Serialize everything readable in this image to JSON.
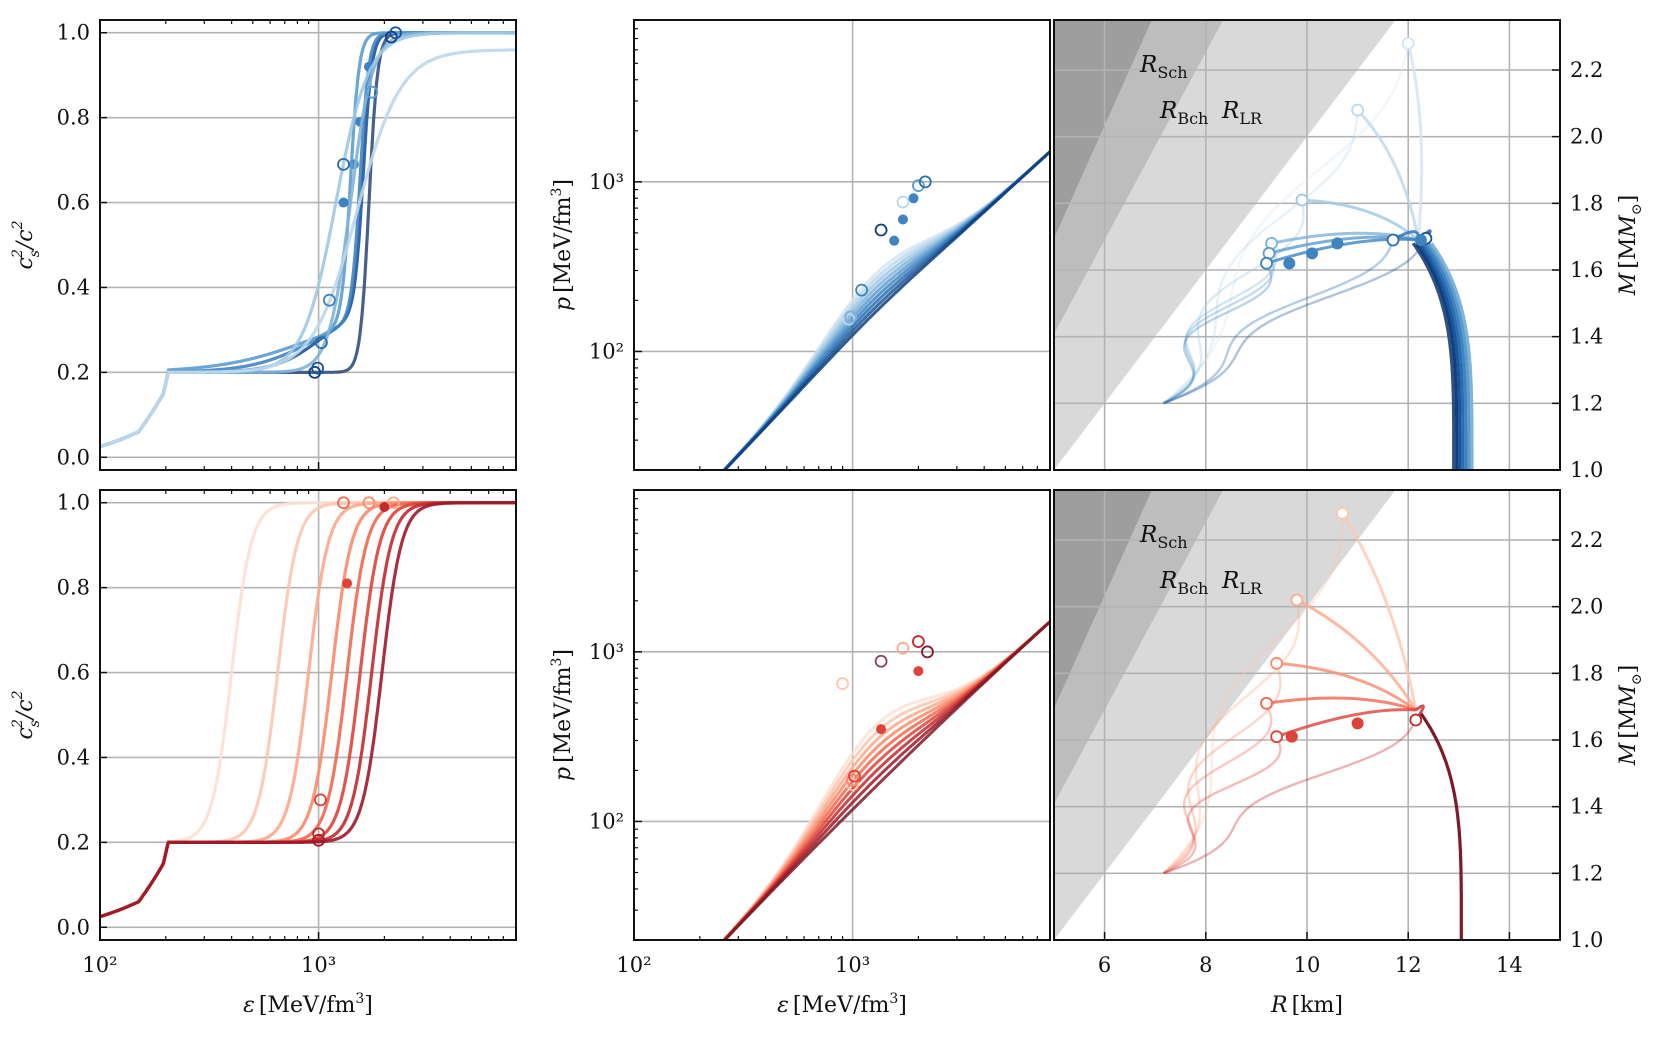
{
  "chart_data": [
    {
      "id": "top-cs2",
      "type": "line",
      "xscale": "log",
      "xlim": [
        100,
        8000
      ],
      "ylim": [
        -0.03,
        1.03
      ],
      "ylabel": "c_s^2/c^2",
      "yticks": [
        "0.0",
        "0.2",
        "0.4",
        "0.6",
        "0.8",
        "1.0"
      ],
      "grid": true,
      "palette": "blues",
      "series": [
        {
          "kind": "jump",
          "x0": 1000,
          "x1": 1700,
          "s": 0.06,
          "marker": [
            1700,
            0.92
          ],
          "mark_x": 1000,
          "mark_y": 0.2
        },
        {
          "kind": "jump",
          "x0": 1000,
          "x1": 1600,
          "s": 0.1,
          "marker": [
            1550,
            0.79
          ],
          "mark_x": 1050,
          "mark_y": 0.27
        },
        {
          "kind": "jump",
          "x0": 950,
          "x1": 1550,
          "s": 0.14,
          "marker": [
            1450,
            0.69
          ],
          "mark_x": 1050,
          "mark_y": 0.22
        },
        {
          "kind": "jump",
          "x0": 900,
          "x1": 1400,
          "s": 0.2,
          "marker": [
            1300,
            0.6
          ],
          "mark_x": 1100,
          "mark_y": 0.37
        },
        {
          "kind": "smooth",
          "x_mid": 1400,
          "w": 0.3,
          "top": 1.0
        },
        {
          "kind": "smooth",
          "x_mid": 1200,
          "w": 0.45,
          "top": 1.0
        },
        {
          "kind": "smooth",
          "x_mid": 1500,
          "w": 0.6,
          "top": 0.96
        }
      ]
    },
    {
      "id": "bottom-cs2",
      "type": "line",
      "xscale": "log",
      "xlim": [
        100,
        8000
      ],
      "ylim": [
        -0.03,
        1.03
      ],
      "ylabel": "c_s^2/c^2",
      "xlabel": "ε [MeV/fm³]",
      "xticks": [
        "10²",
        "10³"
      ],
      "yticks": [
        "0.0",
        "0.2",
        "0.4",
        "0.6",
        "0.8",
        "1.0"
      ],
      "grid": true,
      "palette": "reds",
      "series": [
        {
          "x_mid": 400,
          "w": 0.045
        },
        {
          "x_mid": 650,
          "w": 0.045
        },
        {
          "x_mid": 900,
          "w": 0.045
        },
        {
          "x_mid": 1150,
          "w": 0.045
        },
        {
          "x_mid": 1350,
          "w": 0.045,
          "marker": [
            1350,
            0.81
          ]
        },
        {
          "x_mid": 1550,
          "w": 0.045
        },
        {
          "x_mid": 1750,
          "w": 0.045
        },
        {
          "x_mid": 1950,
          "w": 0.045
        }
      ]
    },
    {
      "id": "top-eos",
      "type": "line",
      "xscale": "log",
      "yscale": "log",
      "xlim": [
        100,
        8000
      ],
      "ylim": [
        20,
        9000
      ],
      "ylabel": "p [MeV/fm³]",
      "yticks": [
        "10²",
        "10³"
      ],
      "palette": "blues"
    },
    {
      "id": "bottom-eos",
      "type": "line",
      "xscale": "log",
      "yscale": "log",
      "xlim": [
        100,
        8000
      ],
      "ylim": [
        20,
        9000
      ],
      "ylabel": "p [MeV/fm³]",
      "xlabel": "ε [MeV/fm³]",
      "xticks": [
        "10²",
        "10³"
      ],
      "yticks": [
        "10²",
        "10³"
      ],
      "palette": "reds"
    },
    {
      "id": "top-mr",
      "type": "line",
      "xlim": [
        5,
        15
      ],
      "ylim": [
        1.0,
        2.35
      ],
      "ylabel": "M [M⊙]",
      "yticks": [
        "1.0",
        "1.2",
        "1.4",
        "1.6",
        "1.8",
        "2.0",
        "2.2"
      ],
      "annotations": [
        "R_Sch",
        "R_Bch",
        "R_LR"
      ],
      "palette": "blues",
      "end_points": [
        {
          "R": 12.0,
          "M": 2.28
        },
        {
          "R": 11.0,
          "M": 2.08
        },
        {
          "R": 9.9,
          "M": 1.81
        },
        {
          "R": 9.3,
          "M": 1.68
        },
        {
          "R": 9.25,
          "M": 1.65
        },
        {
          "R": 9.2,
          "M": 1.62
        },
        {
          "R": 11.7,
          "M": 1.69
        },
        {
          "R": 12.35,
          "M": 1.695
        }
      ],
      "filled_points": [
        {
          "R": 10.6,
          "M": 1.68
        },
        {
          "R": 10.1,
          "M": 1.65
        },
        {
          "R": 9.65,
          "M": 1.62
        },
        {
          "R": 12.25,
          "M": 1.69
        }
      ]
    },
    {
      "id": "bottom-mr",
      "type": "line",
      "xlim": [
        5,
        15
      ],
      "ylim": [
        1.0,
        2.35
      ],
      "ylabel": "M [M⊙]",
      "xlabel": "R [km]",
      "xticks": [
        "6",
        "8",
        "10",
        "12",
        "14"
      ],
      "yticks": [
        "1.0",
        "1.2",
        "1.4",
        "1.6",
        "1.8",
        "2.0",
        "2.2"
      ],
      "annotations": [
        "R_Sch",
        "R_Bch",
        "R_LR"
      ],
      "palette": "reds",
      "end_points": [
        {
          "R": 10.7,
          "M": 2.28
        },
        {
          "R": 9.8,
          "M": 2.02
        },
        {
          "R": 9.4,
          "M": 1.83
        },
        {
          "R": 9.2,
          "M": 1.71
        },
        {
          "R": 9.4,
          "M": 1.61
        },
        {
          "R": 12.15,
          "M": 1.66
        }
      ],
      "filled_points": [
        {
          "R": 11.0,
          "M": 1.65
        },
        {
          "R": 9.7,
          "M": 1.61
        }
      ]
    }
  ],
  "labels": {
    "cs2": "c",
    "cs2_sub": "s",
    "cs2_sup": "2",
    "cs2_den": "/c",
    "p": "p",
    "p_unit": "[MeV/fm",
    "p_unit_sup": "3",
    "p_unit_end": "]",
    "eps": "ε",
    "eps_unit": "[MeV/fm",
    "eps_unit_sup": "3",
    "eps_unit_end": "]",
    "R": "R",
    "R_unit": "[km]",
    "M": "M",
    "M_unit": "[M",
    "M_unit_sub": "⊙",
    "M_unit_end": "]",
    "rsch": "R",
    "rsch_sub": "Sch",
    "rbch": "R",
    "rbch_sub": "Bch",
    "rlr": "R",
    "rlr_sub": "LR"
  }
}
